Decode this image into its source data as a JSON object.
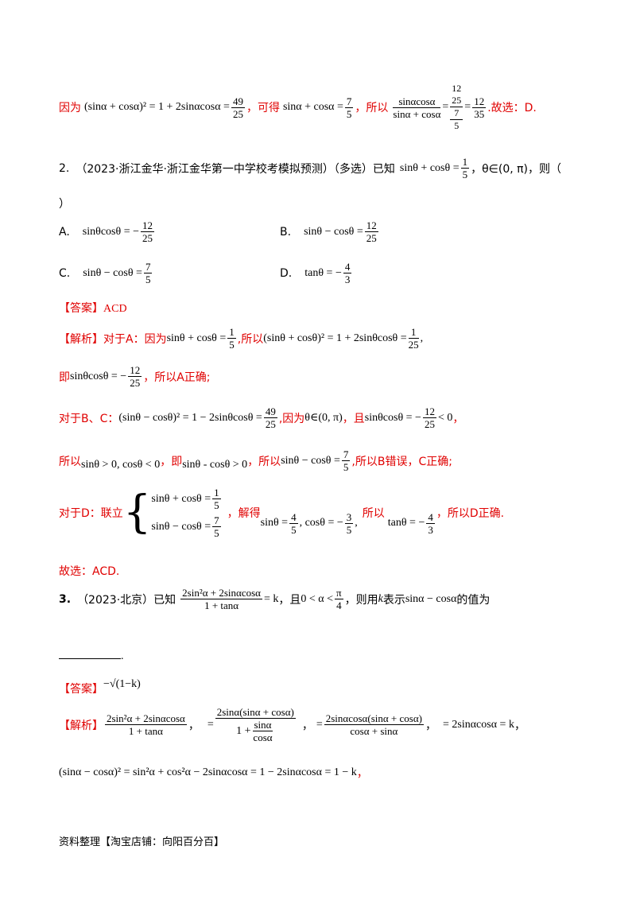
{
  "top": {
    "because": "因为",
    "eq1": "(sinα + cosα)² = 1 + 2sinαcosα =",
    "eq1_num": "49",
    "eq1_den": "25",
    "can_get": "，可得",
    "eq2": "sinα + cosα =",
    "eq2_num": "7",
    "eq2_den": "5",
    "so": "，所以",
    "big_num": "sinαcosα",
    "big_den": "sinα + cosα",
    "cf_n1": "12",
    "cf_d1": "25",
    "cf_n2": "7",
    "cf_d2": "5",
    "res_num": "12",
    "res_den": "35",
    "choose": ".故选：D."
  },
  "q2": {
    "number": "2.",
    "source": "（2023·浙江金华·浙江金华第一中学校考模拟预测）（多选）已知",
    "cond": "sinθ + cosθ =",
    "cond_num": "1",
    "cond_den": "5",
    "range": "，θ∈(0, π)，则（",
    "close": "）",
    "A_label": "A.",
    "A_expr": "sinθcosθ = −",
    "A_num": "12",
    "A_den": "25",
    "B_label": "B.",
    "B_expr": "sinθ − cosθ =",
    "B_num": "12",
    "B_den": "25",
    "C_label": "C.",
    "C_expr": "sinθ − cosθ =",
    "C_num": "7",
    "C_den": "5",
    "D_label": "D.",
    "D_expr": "tanθ = −",
    "D_num": "4",
    "D_den": "3",
    "answer_tag": "【答案】",
    "answer": "ACD",
    "analysis_tag": "【解析】",
    "a1": "对于A：因为",
    "a1_eq": "sinθ + cosθ =",
    "a1_num": "1",
    "a1_den": "5",
    "a1_so": ",所以",
    "a1_eq2": "(sinθ + cosθ)² = 1 + 2sinθcosθ =",
    "a1_num2": "1",
    "a1_den2": "25",
    "a1_end": ",",
    "a2_ji": "即",
    "a2_eq": "sinθcosθ = −",
    "a2_num": "12",
    "a2_den": "25",
    "a2_end": "，所以A正确;",
    "b1": "对于B、C：",
    "b1_eq": "(sinθ − cosθ)² = 1 − 2sinθcosθ =",
    "b1_num": "49",
    "b1_den": "25",
    "b1_because": ",因为",
    "b1_range": "θ∈(0, π)",
    "b1_and": "，且",
    "b1_eq2": "sinθcosθ = −",
    "b1_num2": "12",
    "b1_den2": "25",
    "b1_lt": "< 0",
    "b1_end": "，",
    "c1_so": "所以",
    "c1_eq": "sinθ > 0, cosθ < 0",
    "c1_ji": "，即",
    "c1_eq2": "sinθ - cosθ > 0",
    "c1_so2": "，所以",
    "c1_eq3": "sinθ − cosθ =",
    "c1_num": "7",
    "c1_den": "5",
    "c1_end": ",所以B错误，C正确;",
    "d1": "对于D：联立",
    "d1_sys1": "sinθ + cosθ =",
    "d1_sys1_num": "1",
    "d1_sys1_den": "5",
    "d1_sys2": "sinθ − cosθ =",
    "d1_sys2_num": "7",
    "d1_sys2_den": "5",
    "d1_solve": "，解得",
    "d1_sol_a": "sinθ =",
    "d1_sol_an": "4",
    "d1_sol_ad": "5",
    "d1_sol_b": ", cosθ = −",
    "d1_sol_bn": "3",
    "d1_sol_bd": "5",
    "d1_sol_end": ",",
    "d1_so": "所以",
    "d1_tan": "tanθ = −",
    "d1_tan_num": "4",
    "d1_tan_den": "3",
    "d1_end": "，所以D正确.",
    "choose": "故选：ACD."
  },
  "q3": {
    "number": "3.",
    "source": "（2023·北京）已知",
    "big_num": "2sin²α + 2sinαcosα",
    "big_den": "1 + tanα",
    "eq_k": "= k",
    "and": "，且",
    "range": "0 < α <",
    "pi_num": "π",
    "pi_den": "4",
    "text": "，则用",
    "k": "k",
    "text2": "表示",
    "expr": "sinα − cosα",
    "text3": "的值为",
    "period": ".",
    "answer_tag": "【答案】",
    "answer": "−√(1−k)",
    "analysis_tag": "【解析】",
    "s1_num": "2sin²α + 2sinαcosα",
    "s1_den": "1 + tanα",
    "s1_end": "，",
    "s2_num": "2sinα(sinα + cosα)",
    "s2_den_a": "1 +",
    "s2_den_num": "sinα",
    "s2_den_den": "cosα",
    "s2_end": "，",
    "s3_num": "2sinαcosα(sinα + cosα)",
    "s3_den": "cosα + sinα",
    "s3_end": "，",
    "s4": "= 2sinαcosα = k",
    "s4_end": "，",
    "s5": "(sinα − cosα)² = sin²α + cos²α − 2sinαcosα = 1 − 2sinαcosα = 1 − k",
    "s5_end": "，"
  },
  "footer": "资料整理【淘宝店铺：向阳百分百】"
}
